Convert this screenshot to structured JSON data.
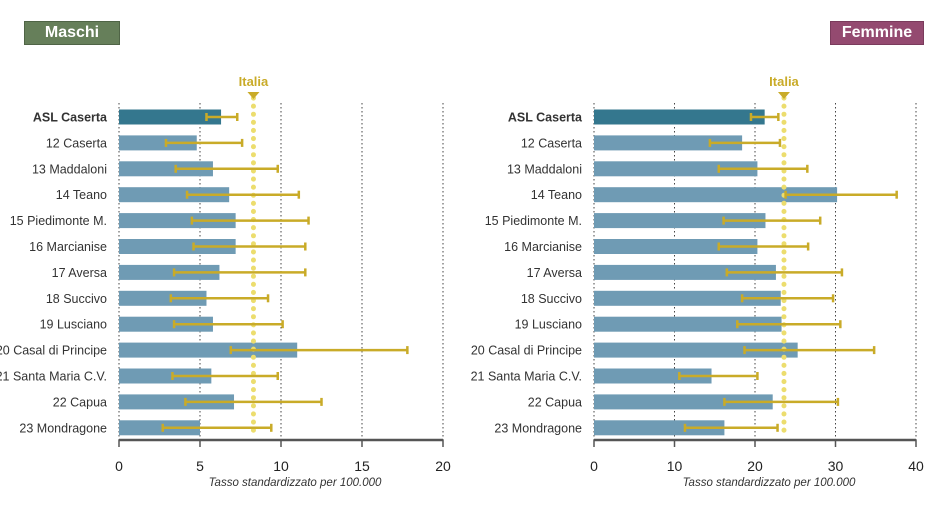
{
  "reference_label": "Italia",
  "colors": {
    "bar": "#6f9bb4",
    "bar_highlight": "#34778e",
    "error": "#c9ab28",
    "reference": "#ecdd6e",
    "axis": "#555555"
  },
  "chart_data": [
    {
      "type": "bar",
      "orientation": "horizontal",
      "title": "Maschi",
      "header_color": "#667f5a",
      "xlabel": "Tasso standardizzato per 100.000",
      "xlim": [
        0,
        20
      ],
      "xticks": [
        0,
        5,
        10,
        15,
        20
      ],
      "grid": true,
      "reference_line": {
        "label": "Italia",
        "value": 8.3
      },
      "categories": [
        "ASL Caserta",
        "12 Caserta",
        "13 Maddaloni",
        "14 Teano",
        "15 Piedimonte M.",
        "16 Marcianise",
        "17 Aversa",
        "18 Succivo",
        "19 Lusciano",
        "20 Casal di Principe",
        "21 Santa Maria C.V.",
        "22 Capua",
        "23 Mondragone"
      ],
      "values": [
        6.3,
        4.8,
        5.8,
        6.8,
        7.2,
        7.2,
        6.2,
        5.4,
        5.8,
        11.0,
        5.7,
        7.1,
        5.0
      ],
      "error_low": [
        5.4,
        2.9,
        3.5,
        4.2,
        4.5,
        4.6,
        3.4,
        3.2,
        3.4,
        6.9,
        3.3,
        4.1,
        2.7
      ],
      "error_high": [
        7.3,
        7.6,
        9.8,
        11.1,
        11.7,
        11.5,
        11.5,
        9.2,
        10.1,
        17.8,
        9.8,
        12.5,
        9.4
      ]
    },
    {
      "type": "bar",
      "orientation": "horizontal",
      "title": "Femmine",
      "header_color": "#944a70",
      "xlabel": "Tasso standardizzato per 100.000",
      "xlim": [
        0,
        40
      ],
      "xticks": [
        0,
        10,
        20,
        30,
        40
      ],
      "grid": true,
      "reference_line": {
        "label": "Italia",
        "value": 23.6
      },
      "categories": [
        "ASL Caserta",
        "12 Caserta",
        "13 Maddaloni",
        "14 Teano",
        "15 Piedimonte M.",
        "16 Marcianise",
        "17 Aversa",
        "18 Succivo",
        "19 Lusciano",
        "20 Casal di Principe",
        "21 Santa Maria C.V.",
        "22 Capua",
        "23 Mondragone"
      ],
      "values": [
        21.2,
        18.4,
        20.3,
        30.2,
        21.3,
        20.3,
        22.6,
        23.2,
        23.3,
        25.3,
        14.6,
        22.2,
        16.2
      ],
      "error_low": [
        19.5,
        14.4,
        15.5,
        23.8,
        16.1,
        15.5,
        16.5,
        18.4,
        17.8,
        18.7,
        10.6,
        16.2,
        11.3
      ],
      "error_high": [
        22.9,
        23.1,
        26.5,
        37.6,
        28.1,
        26.6,
        30.8,
        29.7,
        30.6,
        34.8,
        20.3,
        30.3,
        22.8
      ]
    }
  ]
}
